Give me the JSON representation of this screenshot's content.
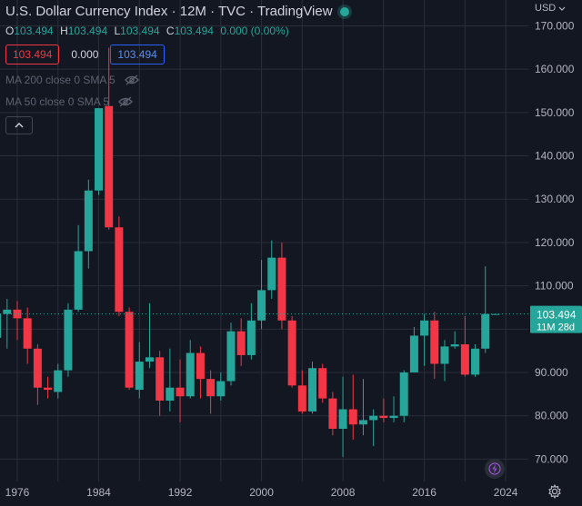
{
  "header": {
    "title": "U.S. Dollar Currency Index · 12M · TVC · TradingView",
    "currency": "USD"
  },
  "ohlc": {
    "o_label": "O",
    "o": "103.494",
    "h_label": "H",
    "h": "103.494",
    "l_label": "L",
    "l": "103.494",
    "c_label": "C",
    "c": "103.494",
    "change": "0.000 (0.00%)"
  },
  "price_boxes": {
    "bid": "103.494",
    "spread": "0.000",
    "ask": "103.494"
  },
  "indicators": [
    {
      "label": "MA 200 close 0 SMA 5"
    },
    {
      "label": "MA 50 close 0 SMA 5"
    }
  ],
  "colors": {
    "up": "#26a69a",
    "down": "#f23645",
    "background": "#131722",
    "grid": "#2a2e39"
  },
  "icons": {
    "eye_off": "eye-off-icon",
    "collapse": "chevron-up-icon",
    "flash": "lightning-icon",
    "settings": "gear-icon"
  },
  "chart_data": {
    "type": "candlestick",
    "title": "U.S. Dollar Currency Index · 12M · TVC · TradingView",
    "xlabel": "",
    "ylabel": "",
    "ylim": [
      64.0,
      172.2
    ],
    "y_ticks": [
      70,
      80,
      90,
      100,
      110,
      120,
      130,
      140,
      150,
      160,
      170
    ],
    "y_tick_labels": [
      "70.000",
      "80.000",
      "90.000",
      "100.000",
      "110.000",
      "120.000",
      "130.000",
      "140.000",
      "150.000",
      "160.000",
      "170.000"
    ],
    "x_ticks": [
      1976,
      1984,
      1992,
      2000,
      2008,
      2016,
      2024
    ],
    "x_tick_labels": [
      "1976",
      "1984",
      "1992",
      "2000",
      "2008",
      "2016",
      "2024"
    ],
    "grid": true,
    "last_price": {
      "value": 103.494,
      "label": "103.494",
      "countdown": "11M 28d"
    },
    "candles": [
      {
        "year": 1974,
        "open": 98.0,
        "high": 106.0,
        "low": 93.0,
        "close": 103.5
      },
      {
        "year": 1975,
        "open": 103.5,
        "high": 107.0,
        "low": 95.5,
        "close": 104.5
      },
      {
        "year": 1976,
        "open": 104.5,
        "high": 106.5,
        "low": 97.5,
        "close": 102.5
      },
      {
        "year": 1977,
        "open": 102.5,
        "high": 105.0,
        "low": 92.0,
        "close": 95.5
      },
      {
        "year": 1978,
        "open": 95.5,
        "high": 96.5,
        "low": 82.5,
        "close": 86.5
      },
      {
        "year": 1979,
        "open": 86.5,
        "high": 89.0,
        "low": 84.0,
        "close": 86.0
      },
      {
        "year": 1980,
        "open": 85.5,
        "high": 92.0,
        "low": 84.0,
        "close": 90.5
      },
      {
        "year": 1981,
        "open": 90.5,
        "high": 106.0,
        "low": 89.0,
        "close": 104.5
      },
      {
        "year": 1982,
        "open": 104.5,
        "high": 124.0,
        "low": 104.0,
        "close": 118.0
      },
      {
        "year": 1983,
        "open": 118.0,
        "high": 134.5,
        "low": 114.0,
        "close": 132.0
      },
      {
        "year": 1984,
        "open": 132.0,
        "high": 151.0,
        "low": 131.0,
        "close": 151.0
      },
      {
        "year": 1985,
        "open": 151.5,
        "high": 165.0,
        "low": 123.0,
        "close": 123.5
      },
      {
        "year": 1986,
        "open": 123.5,
        "high": 126.0,
        "low": 103.0,
        "close": 104.0
      },
      {
        "year": 1987,
        "open": 104.0,
        "high": 105.0,
        "low": 86.0,
        "close": 86.5
      },
      {
        "year": 1988,
        "open": 86.0,
        "high": 97.0,
        "low": 84.0,
        "close": 92.5
      },
      {
        "year": 1989,
        "open": 92.5,
        "high": 106.0,
        "low": 91.0,
        "close": 93.5
      },
      {
        "year": 1990,
        "open": 93.5,
        "high": 95.0,
        "low": 80.0,
        "close": 83.5
      },
      {
        "year": 1991,
        "open": 83.5,
        "high": 95.5,
        "low": 81.0,
        "close": 86.5
      },
      {
        "year": 1992,
        "open": 86.5,
        "high": 93.0,
        "low": 78.5,
        "close": 84.5
      },
      {
        "year": 1993,
        "open": 84.5,
        "high": 97.5,
        "low": 84.0,
        "close": 94.5
      },
      {
        "year": 1994,
        "open": 94.5,
        "high": 96.0,
        "low": 84.0,
        "close": 88.5
      },
      {
        "year": 1995,
        "open": 88.5,
        "high": 90.5,
        "low": 80.5,
        "close": 84.5
      },
      {
        "year": 1996,
        "open": 84.5,
        "high": 90.0,
        "low": 83.5,
        "close": 88.0
      },
      {
        "year": 1997,
        "open": 88.0,
        "high": 101.5,
        "low": 87.0,
        "close": 99.5
      },
      {
        "year": 1998,
        "open": 99.5,
        "high": 102.5,
        "low": 91.5,
        "close": 94.0
      },
      {
        "year": 1999,
        "open": 94.0,
        "high": 106.0,
        "low": 93.0,
        "close": 102.0
      },
      {
        "year": 2000,
        "open": 102.0,
        "high": 116.0,
        "low": 100.0,
        "close": 109.0
      },
      {
        "year": 2001,
        "open": 109.0,
        "high": 120.5,
        "low": 107.0,
        "close": 116.5
      },
      {
        "year": 2002,
        "open": 116.5,
        "high": 120.0,
        "low": 100.0,
        "close": 102.0
      },
      {
        "year": 2003,
        "open": 102.0,
        "high": 103.0,
        "low": 86.5,
        "close": 87.0
      },
      {
        "year": 2004,
        "open": 87.0,
        "high": 90.5,
        "low": 80.5,
        "close": 81.0
      },
      {
        "year": 2005,
        "open": 81.0,
        "high": 92.5,
        "low": 80.5,
        "close": 91.0
      },
      {
        "year": 2006,
        "open": 91.0,
        "high": 92.0,
        "low": 83.0,
        "close": 84.0
      },
      {
        "year": 2007,
        "open": 84.0,
        "high": 85.5,
        "low": 75.5,
        "close": 77.0
      },
      {
        "year": 2008,
        "open": 77.0,
        "high": 89.0,
        "low": 70.5,
        "close": 81.5
      },
      {
        "year": 2009,
        "open": 81.5,
        "high": 89.5,
        "low": 74.5,
        "close": 78.0
      },
      {
        "year": 2010,
        "open": 78.0,
        "high": 88.5,
        "low": 75.5,
        "close": 79.0
      },
      {
        "year": 2011,
        "open": 79.0,
        "high": 81.5,
        "low": 73.0,
        "close": 80.0
      },
      {
        "year": 2012,
        "open": 80.0,
        "high": 84.0,
        "low": 78.5,
        "close": 79.5
      },
      {
        "year": 2013,
        "open": 79.5,
        "high": 84.5,
        "low": 78.5,
        "close": 80.0
      },
      {
        "year": 2014,
        "open": 80.0,
        "high": 90.5,
        "low": 78.5,
        "close": 90.0
      },
      {
        "year": 2015,
        "open": 90.0,
        "high": 100.5,
        "low": 90.0,
        "close": 98.5
      },
      {
        "year": 2016,
        "open": 98.5,
        "high": 103.5,
        "low": 91.5,
        "close": 102.0
      },
      {
        "year": 2017,
        "open": 102.0,
        "high": 104.0,
        "low": 88.5,
        "close": 92.0
      },
      {
        "year": 2018,
        "open": 92.0,
        "high": 97.5,
        "low": 88.0,
        "close": 96.0
      },
      {
        "year": 2019,
        "open": 96.0,
        "high": 99.5,
        "low": 95.5,
        "close": 96.5
      },
      {
        "year": 2020,
        "open": 96.5,
        "high": 103.0,
        "low": 89.0,
        "close": 89.5
      },
      {
        "year": 2021,
        "open": 89.5,
        "high": 96.5,
        "low": 89.0,
        "close": 95.5
      },
      {
        "year": 2022,
        "open": 95.5,
        "high": 114.5,
        "low": 94.5,
        "close": 103.5
      },
      {
        "year": 2023,
        "open": 103.494,
        "high": 103.494,
        "low": 103.494,
        "close": 103.494
      }
    ]
  }
}
